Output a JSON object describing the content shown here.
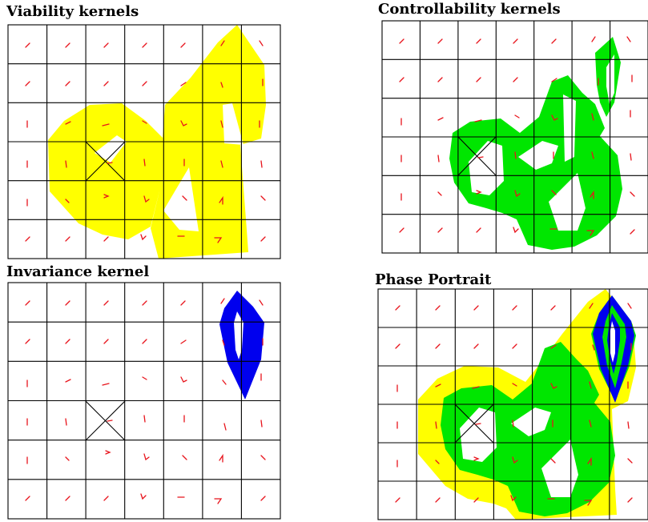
{
  "panels": [
    {
      "id": "viability",
      "title": "Viability kernels"
    },
    {
      "id": "controllability",
      "title": "Controllability kernels"
    },
    {
      "id": "invariance",
      "title": "Invariance kernel"
    },
    {
      "id": "phase",
      "title": "Phase Portrait"
    }
  ],
  "colors": {
    "viability": "#ffff00",
    "controllability": "#00e600",
    "invariance": "#0000ee",
    "grid": "#000000",
    "arrow": "#e8141c"
  }
}
